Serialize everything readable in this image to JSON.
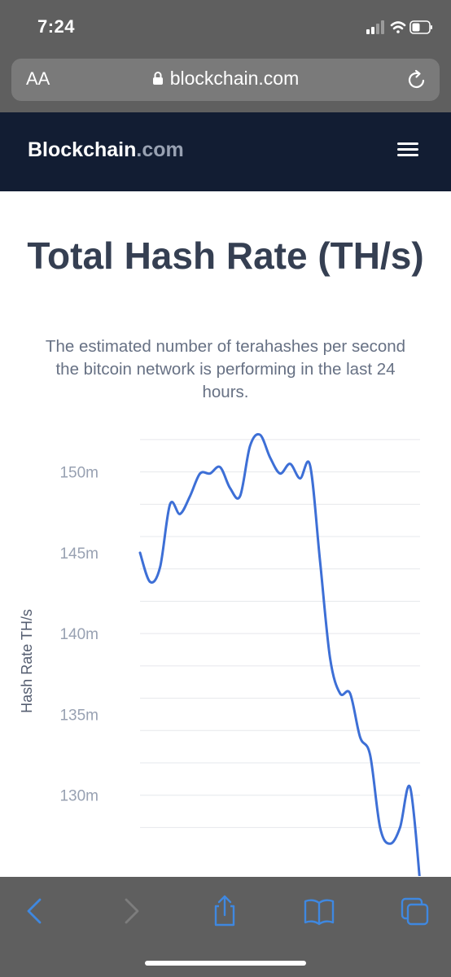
{
  "status_bar": {
    "time": "7:24",
    "icons": [
      "cellular-signal-icon",
      "wifi-icon",
      "battery-icon"
    ]
  },
  "browser": {
    "text_size_label": "AA",
    "url": "blockchain.com",
    "icons": [
      "lock-icon",
      "reload-icon"
    ]
  },
  "site": {
    "logo_main": "Blockchain",
    "logo_tld": ".com",
    "menu_icon": "hamburger-menu-icon",
    "background_color": "#121d33"
  },
  "page": {
    "title": "Total Hash Rate (TH/s)",
    "subtitle": "The estimated number of terahashes per second the bitcoin network is performing in the last 24 hours."
  },
  "chart_data": {
    "type": "line",
    "title": "Total Hash Rate (TH/s)",
    "ylabel": "Hash Rate TH/s",
    "xlabel": "",
    "ylim": [
      125,
      152.5
    ],
    "yticks": [
      {
        "value": 130,
        "label": "130m"
      },
      {
        "value": 135,
        "label": "135m"
      },
      {
        "value": 140,
        "label": "140m"
      },
      {
        "value": 145,
        "label": "145m"
      },
      {
        "value": 150,
        "label": "150m"
      }
    ],
    "gridlines": [
      128,
      130,
      132,
      134,
      136,
      138,
      140,
      142,
      144,
      146,
      148,
      150,
      152
    ],
    "grid": true,
    "line_color": "#3d6fd6",
    "series": [
      {
        "values": [
          145.0,
          143.2,
          144.1,
          148.0,
          147.4,
          148.5,
          149.9,
          149.9,
          150.3,
          149.0,
          148.5,
          151.6,
          152.3,
          150.9,
          149.9,
          150.5,
          149.6,
          150.4,
          144.5,
          138.5,
          136.3,
          136.3,
          133.6,
          132.5,
          128.0,
          127.0,
          128.0,
          130.5,
          124.6
        ]
      }
    ]
  },
  "toolbar": {
    "icons": [
      "back-icon",
      "forward-icon",
      "share-icon",
      "bookmarks-icon",
      "tabs-icon"
    ]
  }
}
